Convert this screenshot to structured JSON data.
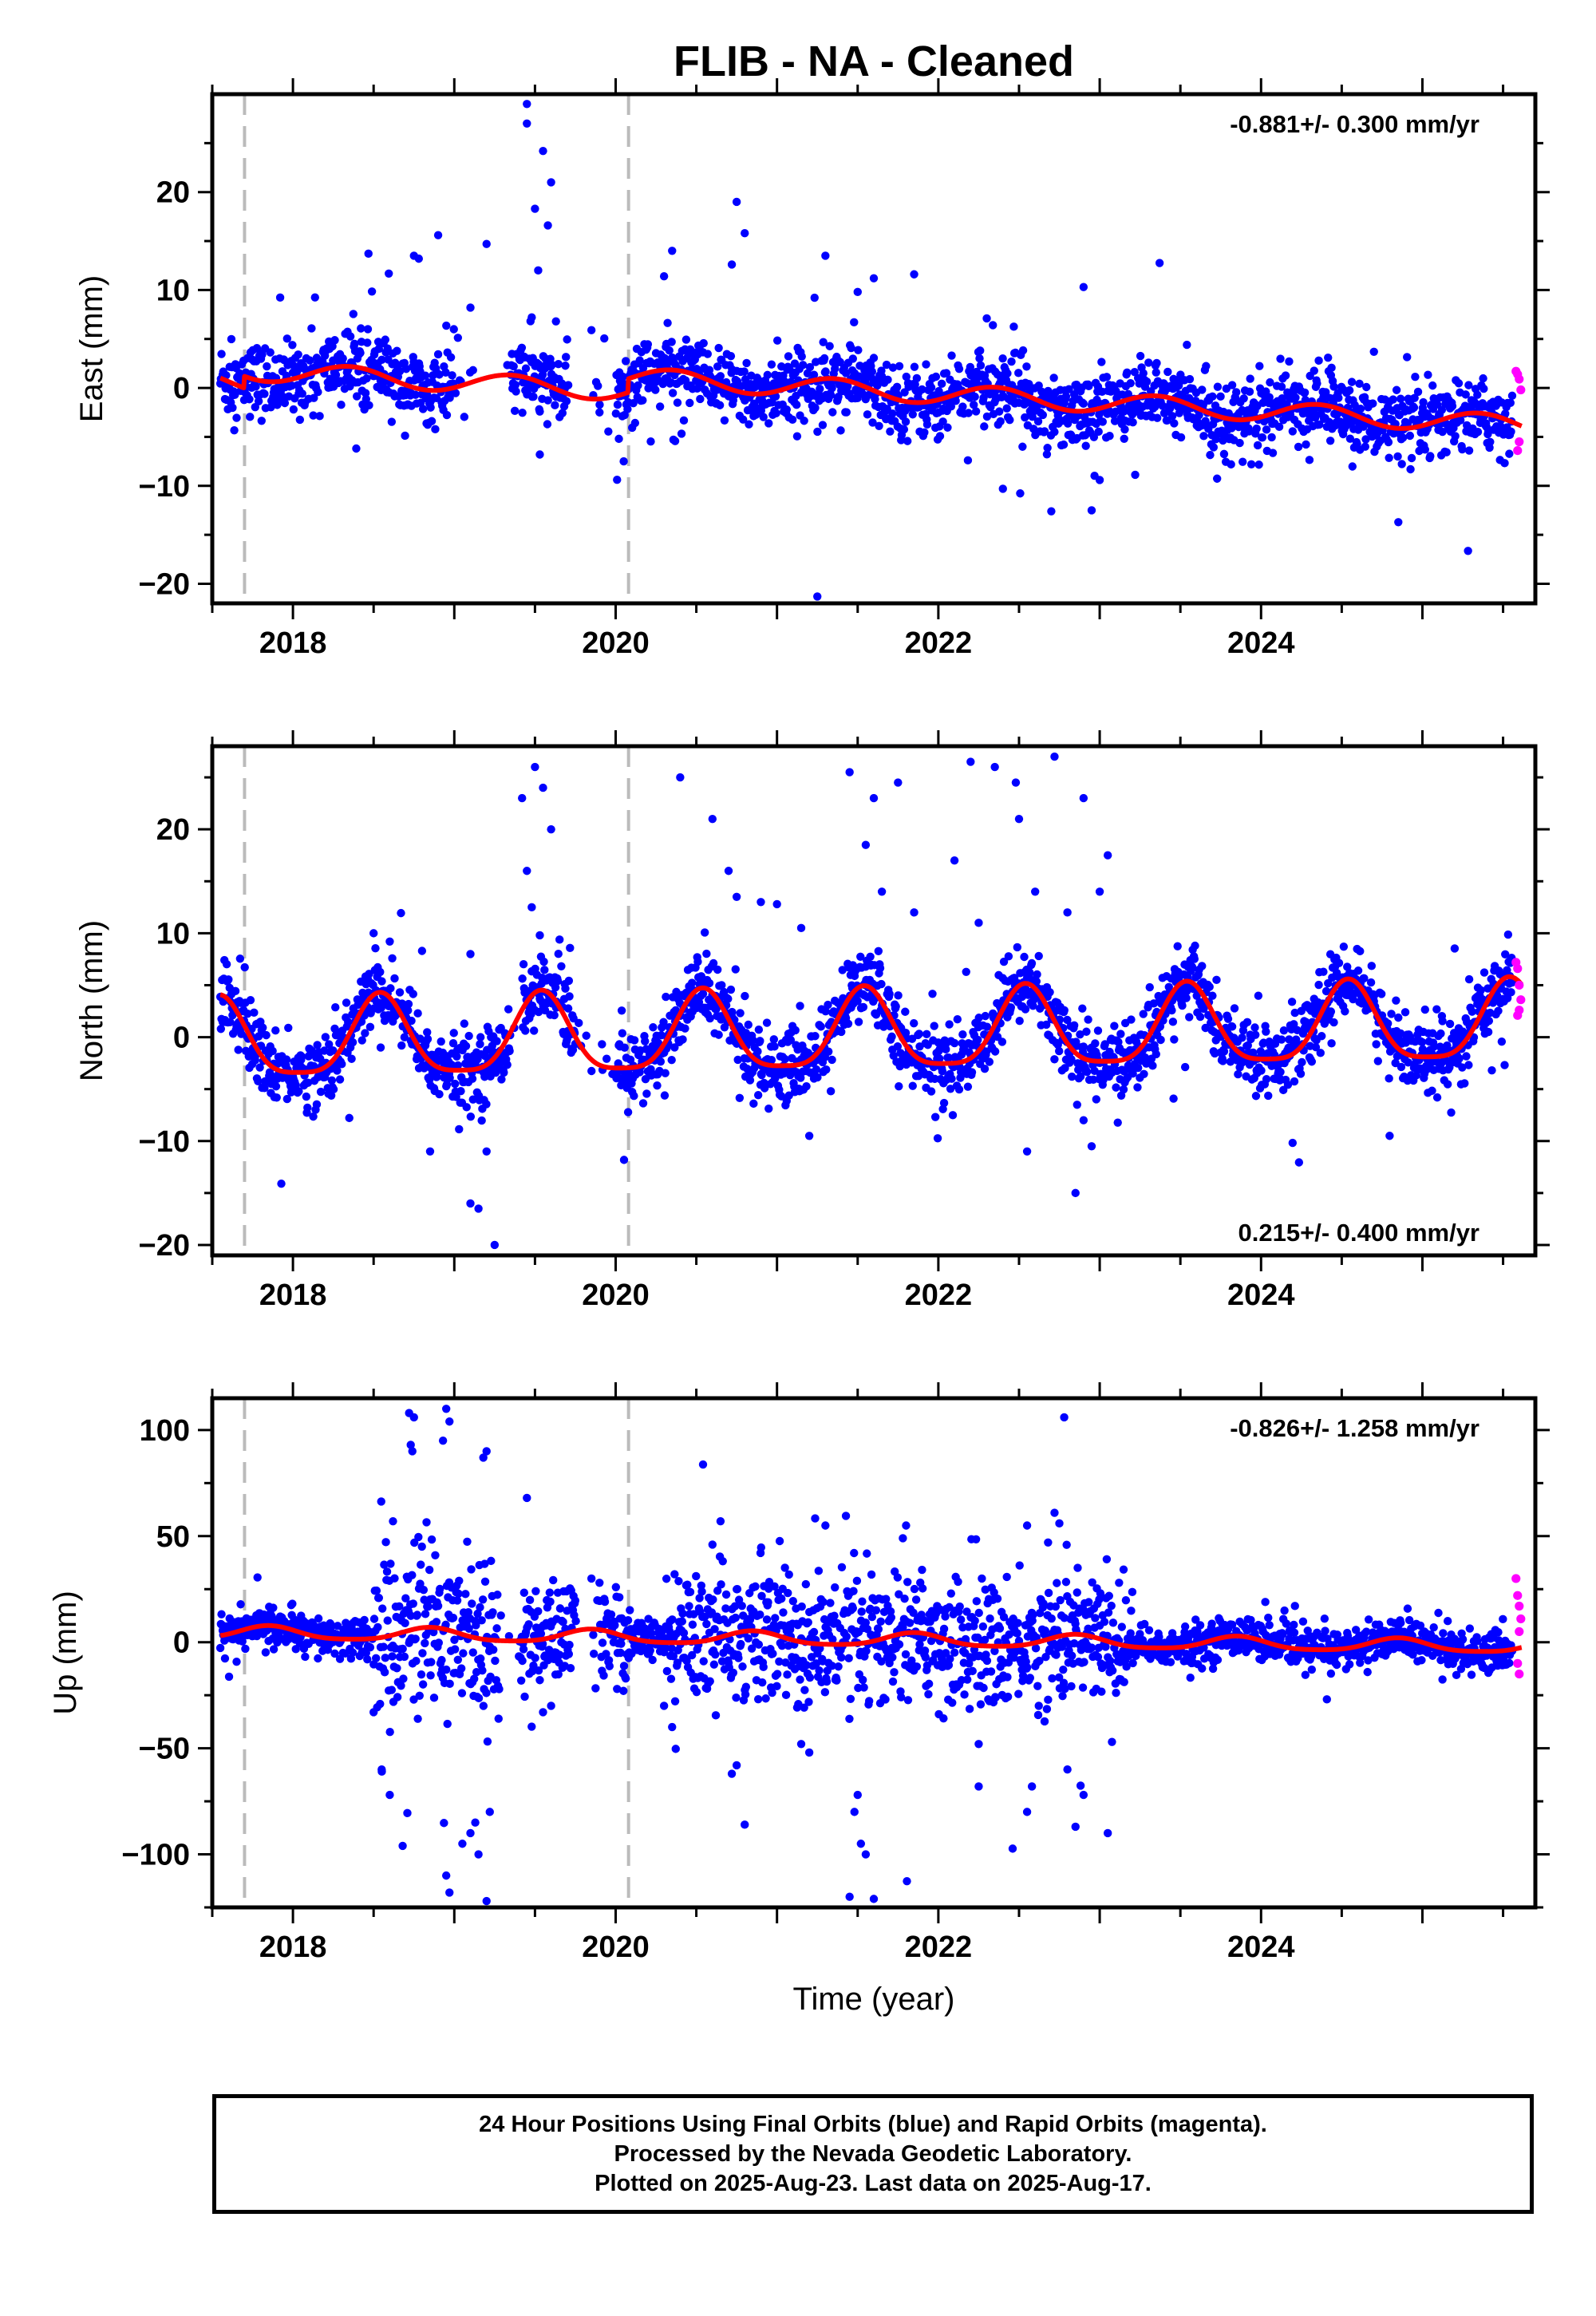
{
  "title": "FLIB  - NA - Cleaned",
  "xlabel": "Time (year)",
  "footer": {
    "line1": "24 Hour Positions Using Final Orbits (blue) and Rapid Orbits (magenta).",
    "line2": "Processed by the Nevada Geodetic Laboratory.",
    "line3": "Plotted on 2025-Aug-23. Last data on 2025-Aug-17."
  },
  "colors": {
    "final": "#0000ff",
    "rapid": "#ff00ff",
    "model": "#ff0000",
    "event_line": "#bbbbbb",
    "axis": "#000000"
  },
  "chart_data": [
    {
      "type": "scatter",
      "component": "east",
      "ylabel": "East (mm)",
      "rate_label": "-0.881+/- 0.300 mm/yr",
      "rate_position": "top-right",
      "xlim": [
        2017.5,
        2025.7
      ],
      "ylim": [
        -22,
        30
      ],
      "xticks": [
        2018,
        2020,
        2022,
        2024
      ],
      "yticks": [
        -20,
        -10,
        0,
        10,
        20
      ],
      "event_lines": [
        2017.7,
        2020.08
      ],
      "model": {
        "trend_rate_mm_yr": -0.881,
        "segments": [
          {
            "x0": 2017.55,
            "x1": 2020.08,
            "offset": 1.9,
            "annual_amp": 1.0,
            "annual_phase": 0.1
          },
          {
            "x0": 2020.08,
            "x1": 2025.62,
            "offset": 3.3,
            "annual_amp": 1.0,
            "annual_phase": 0.1
          }
        ],
        "step_2017_7": 1.2
      },
      "final_series": {
        "x_range": [
          2017.55,
          2025.56
        ],
        "gaps": [
          [
            2019.0,
            2019.35
          ],
          [
            2019.7,
            2020.0
          ]
        ],
        "noise_sd": 1.8,
        "outliers": [
          [
            2018.75,
            13.5
          ],
          [
            2018.78,
            13.2
          ],
          [
            2018.9,
            15.6
          ],
          [
            2019.2,
            14.7
          ],
          [
            2019.1,
            8.2
          ],
          [
            2019.45,
            29.0
          ],
          [
            2019.45,
            27.0
          ],
          [
            2019.5,
            18.3
          ],
          [
            2019.55,
            24.2
          ],
          [
            2019.6,
            21.0
          ],
          [
            2019.58,
            16.6
          ],
          [
            2019.52,
            12.0
          ],
          [
            2019.48,
            7.2
          ],
          [
            2019.53,
            -6.8
          ],
          [
            2019.63,
            6.8
          ],
          [
            2019.85,
            5.9
          ],
          [
            2020.75,
            19.0
          ],
          [
            2020.8,
            15.8
          ],
          [
            2020.72,
            12.6
          ],
          [
            2020.3,
            11.4
          ],
          [
            2020.35,
            14.0
          ],
          [
            2021.3,
            13.5
          ],
          [
            2021.5,
            9.8
          ],
          [
            2021.6,
            11.2
          ],
          [
            2021.85,
            11.6
          ],
          [
            2022.3,
            7.1
          ],
          [
            2022.4,
            -10.3
          ],
          [
            2022.7,
            -12.6
          ],
          [
            2022.95,
            -12.5
          ],
          [
            2022.9,
            10.3
          ],
          [
            2023.0,
            -9.4
          ],
          [
            2021.25,
            -21.3
          ],
          [
            2019.9,
            -2.5
          ],
          [
            2020.05,
            -7.5
          ],
          [
            2020.02,
            -5.2
          ]
        ]
      },
      "rapid_series": {
        "x": [
          2025.58,
          2025.59,
          2025.6,
          2025.61,
          2025.6,
          2025.59
        ],
        "y": [
          1.7,
          1.4,
          0.9,
          -0.2,
          -5.5,
          -6.4
        ]
      }
    },
    {
      "type": "scatter",
      "component": "north",
      "ylabel": "North (mm)",
      "rate_label": "0.215+/- 0.400 mm/yr",
      "rate_position": "bottom-right",
      "xlim": [
        2017.5,
        2025.7
      ],
      "ylim": [
        -21,
        28
      ],
      "xticks": [
        2018,
        2020,
        2022,
        2024
      ],
      "yticks": [
        -20,
        -10,
        0,
        10,
        20
      ],
      "event_lines": [
        2017.7,
        2020.08
      ],
      "model": {
        "trend_rate_mm_yr": 0.215,
        "offset": -0.6,
        "annual_amp": 3.8,
        "annual_peak": 0.54,
        "semiannual_amp": 0.9
      },
      "final_series": {
        "x_range": [
          2017.55,
          2025.56
        ],
        "gaps": [
          [
            2019.35,
            2019.42
          ],
          [
            2019.75,
            2020.0
          ]
        ],
        "noise_sd": 1.7,
        "outliers": [
          [
            2019.42,
            23.0
          ],
          [
            2019.45,
            16.0
          ],
          [
            2019.5,
            26.0
          ],
          [
            2019.55,
            24.0
          ],
          [
            2019.6,
            20.0
          ],
          [
            2019.48,
            12.5
          ],
          [
            2019.53,
            9.8
          ],
          [
            2020.4,
            25.0
          ],
          [
            2020.6,
            21.0
          ],
          [
            2020.7,
            16.0
          ],
          [
            2020.75,
            13.5
          ],
          [
            2020.9,
            13.0
          ],
          [
            2021.0,
            12.8
          ],
          [
            2021.15,
            10.5
          ],
          [
            2021.45,
            25.5
          ],
          [
            2021.6,
            23.0
          ],
          [
            2021.75,
            24.5
          ],
          [
            2021.55,
            18.5
          ],
          [
            2021.65,
            14.0
          ],
          [
            2021.85,
            12.0
          ],
          [
            2022.2,
            26.5
          ],
          [
            2022.35,
            26.0
          ],
          [
            2022.48,
            24.5
          ],
          [
            2022.72,
            27.0
          ],
          [
            2022.9,
            23.0
          ],
          [
            2023.05,
            17.5
          ],
          [
            2022.5,
            21.0
          ],
          [
            2022.1,
            17.0
          ],
          [
            2022.25,
            11.0
          ],
          [
            2022.6,
            14.0
          ],
          [
            2022.8,
            12.0
          ],
          [
            2023.0,
            14.0
          ],
          [
            2019.1,
            -16.0
          ],
          [
            2019.15,
            -16.5
          ],
          [
            2019.2,
            -11.0
          ],
          [
            2019.25,
            -20.0
          ],
          [
            2021.2,
            -9.5
          ],
          [
            2022.55,
            -11.0
          ],
          [
            2022.85,
            -15.0
          ],
          [
            2018.85,
            -11.0
          ],
          [
            2018.5,
            10.0
          ],
          [
            2018.6,
            9.2
          ],
          [
            2018.8,
            8.3
          ],
          [
            2019.1,
            8.0
          ],
          [
            2022.9,
            -8.0
          ],
          [
            2022.95,
            -10.5
          ]
        ]
      },
      "rapid_series": {
        "x": [
          2025.58,
          2025.59,
          2025.6,
          2025.61,
          2025.6,
          2025.59
        ],
        "y": [
          7.2,
          6.6,
          5.0,
          3.6,
          2.6,
          2.1
        ]
      }
    },
    {
      "type": "scatter",
      "component": "up",
      "ylabel": "Up (mm)",
      "rate_label": "-0.826+/- 1.258 mm/yr",
      "rate_position": "top-right",
      "xlim": [
        2017.5,
        2025.7
      ],
      "ylim": [
        -125,
        115
      ],
      "xticks": [
        2018,
        2020,
        2022,
        2024
      ],
      "yticks": [
        -100,
        -50,
        0,
        50,
        100
      ],
      "event_lines": [
        2017.7,
        2020.08
      ],
      "model": {
        "trend_rate_mm_yr": -0.826,
        "offset": 4.5,
        "annual_amp": 3.0,
        "annual_peak": 0.85,
        "semiannual_amp": 0.6
      },
      "final_series": {
        "x_range": [
          2017.55,
          2025.56
        ],
        "gaps": [
          [
            2019.28,
            2019.4
          ],
          [
            2019.75,
            2019.9
          ]
        ],
        "noise_sd": 4.5,
        "noisy_periods": [
          [
            2018.5,
            2019.3,
            20
          ],
          [
            2019.4,
            2020.1,
            12
          ],
          [
            2020.3,
            2023.2,
            15
          ]
        ],
        "outliers": [
          [
            2018.72,
            108
          ],
          [
            2018.75,
            106
          ],
          [
            2018.73,
            93
          ],
          [
            2018.74,
            90
          ],
          [
            2018.95,
            110
          ],
          [
            2018.97,
            104
          ],
          [
            2018.93,
            95
          ],
          [
            2019.2,
            90
          ],
          [
            2019.18,
            87
          ],
          [
            2019.45,
            68
          ],
          [
            2018.62,
            57
          ],
          [
            2020.65,
            57
          ],
          [
            2020.6,
            46
          ],
          [
            2021.3,
            55
          ],
          [
            2021.8,
            55
          ],
          [
            2021.78,
            49
          ],
          [
            2022.55,
            55
          ],
          [
            2022.72,
            61
          ],
          [
            2022.75,
            56
          ],
          [
            2022.68,
            47
          ],
          [
            2022.78,
            106
          ],
          [
            2023.12,
            28
          ],
          [
            2018.68,
            -96
          ],
          [
            2018.95,
            -110
          ],
          [
            2018.97,
            -118
          ],
          [
            2019.05,
            -95
          ],
          [
            2019.2,
            -122
          ],
          [
            2019.15,
            -100
          ],
          [
            2019.1,
            -90
          ],
          [
            2019.13,
            -85
          ],
          [
            2019.22,
            -80
          ],
          [
            2021.45,
            -120
          ],
          [
            2021.6,
            -121
          ],
          [
            2021.55,
            -100
          ],
          [
            2021.52,
            -95
          ],
          [
            2021.48,
            -80
          ],
          [
            2021.5,
            -72
          ],
          [
            2020.8,
            -86
          ],
          [
            2020.72,
            -62
          ],
          [
            2020.75,
            -58
          ],
          [
            2021.2,
            -52
          ],
          [
            2021.15,
            -48
          ],
          [
            2022.25,
            -68
          ],
          [
            2022.25,
            -48
          ],
          [
            2022.55,
            -80
          ],
          [
            2022.58,
            -68
          ],
          [
            2022.85,
            -87
          ],
          [
            2022.8,
            -60
          ],
          [
            2023.05,
            -90
          ],
          [
            2022.9,
            -72
          ],
          [
            2018.6,
            -72
          ],
          [
            2018.55,
            -60
          ],
          [
            2018.5,
            -33
          ],
          [
            2019.6,
            -30
          ],
          [
            2019.55,
            -33
          ],
          [
            2020.3,
            -30
          ],
          [
            2020.35,
            -40
          ],
          [
            2019.85,
            30
          ],
          [
            2019.9,
            28
          ]
        ]
      },
      "rapid_series": {
        "x": [
          2025.58,
          2025.59,
          2025.6,
          2025.61,
          2025.6,
          2025.59,
          2025.6
        ],
        "y": [
          30,
          22,
          17,
          11,
          5,
          -10,
          -15
        ]
      }
    }
  ]
}
